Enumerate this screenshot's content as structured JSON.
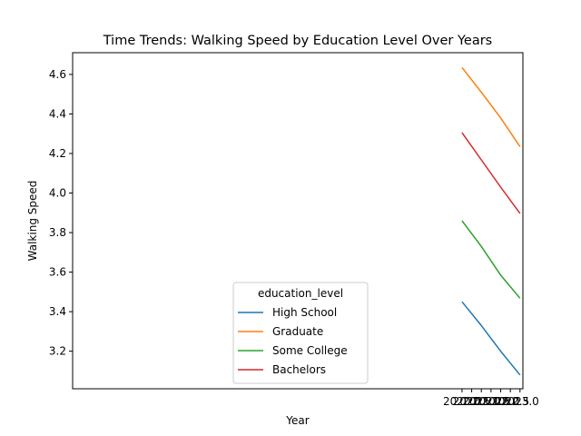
{
  "chart_data": {
    "type": "line",
    "title": "Time Trends: Walking Speed by Education Level Over Years",
    "xlabel": "Year",
    "ylabel": "Walking Speed",
    "x": [
      2020,
      2021,
      2022,
      2023
    ],
    "xlim": [
      1999.85,
      2023.15
    ],
    "ylim": [
      3.01,
      4.71
    ],
    "xticks": [
      "2020.0",
      "2020.5",
      "2021.0",
      "2021.5",
      "2022.0",
      "2022.5",
      "2023.0"
    ],
    "xtick_values": [
      2020.0,
      2020.5,
      2021.0,
      2021.5,
      2022.0,
      2022.5,
      2023.0
    ],
    "yticks": [
      "3.2",
      "3.4",
      "3.6",
      "3.8",
      "4.0",
      "4.2",
      "4.4",
      "4.6"
    ],
    "ytick_values": [
      3.2,
      3.4,
      3.6,
      3.8,
      4.0,
      4.2,
      4.4,
      4.6
    ],
    "grid": false,
    "legend": {
      "title": "education_level",
      "placement": "lower-center"
    },
    "series": [
      {
        "name": "High School",
        "color": "#1f77b4",
        "values": [
          3.45,
          3.33,
          3.2,
          3.08
        ]
      },
      {
        "name": "Graduate",
        "color": "#ff7f0e",
        "values": [
          4.635,
          4.51,
          4.38,
          4.235
        ]
      },
      {
        "name": "Some College",
        "color": "#2ca02c",
        "values": [
          3.86,
          3.73,
          3.585,
          3.468
        ]
      },
      {
        "name": "Bachelors",
        "color": "#d62728",
        "values": [
          4.305,
          4.168,
          4.03,
          3.897
        ]
      }
    ]
  }
}
